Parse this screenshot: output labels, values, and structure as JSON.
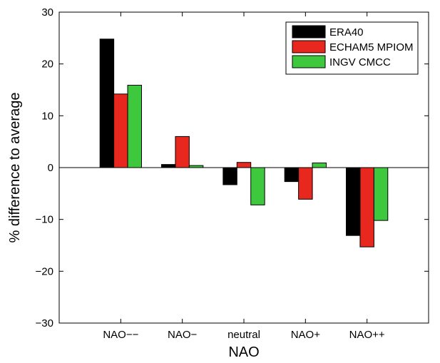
{
  "chart_data": {
    "type": "bar",
    "title": "",
    "xlabel": "NAO",
    "ylabel": "% difference to average",
    "categories": [
      "NAO−−",
      "NAO−",
      "neutral",
      "NAO+",
      "NAO++"
    ],
    "series": [
      {
        "name": "ERA40",
        "values": [
          24.8,
          0.6,
          -3.3,
          -2.7,
          -13.1
        ],
        "color": "#000000"
      },
      {
        "name": "ECHAM5 MPIOM",
        "values": [
          14.2,
          6.0,
          1.0,
          -6.1,
          -15.3
        ],
        "color": "#e8281e"
      },
      {
        "name": "INGV CMCC",
        "values": [
          15.9,
          0.4,
          -7.2,
          0.9,
          -10.2
        ],
        "color": "#3ec83e"
      }
    ],
    "ylim": [
      -30,
      30
    ],
    "yticks": [
      -30,
      -20,
      -10,
      0,
      10,
      20,
      30
    ],
    "grid": false,
    "legend_position": "top-right",
    "zero_line": true
  }
}
